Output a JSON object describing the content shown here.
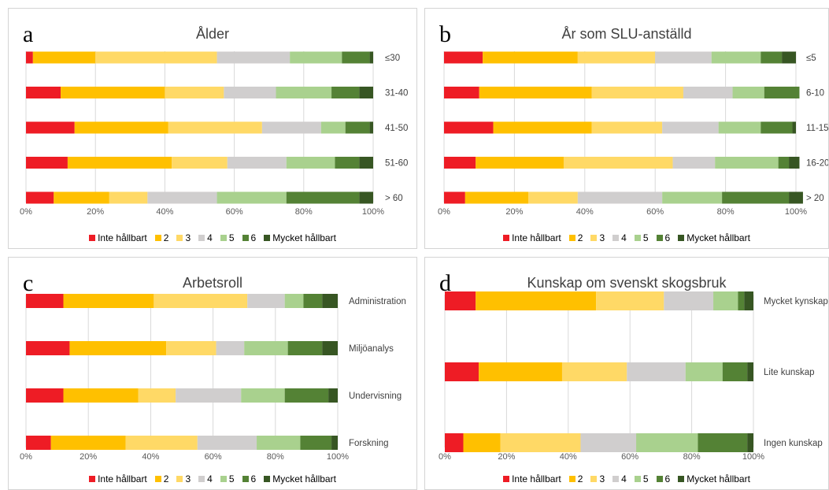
{
  "legend": [
    "Inte hållbart",
    "2",
    "3",
    "4",
    "5",
    "6",
    "Mycket hållbart"
  ],
  "colors": [
    "#ee1c25",
    "#ffc000",
    "#ffd966",
    "#d0cece",
    "#a9d18e",
    "#548235",
    "#375623"
  ],
  "chart_data": [
    {
      "type": "bar",
      "stacked": true,
      "orientation": "horizontal",
      "letter": "a",
      "title": "Ålder",
      "categories": [
        "≤30",
        "31-40",
        "41-50",
        "51-60",
        "> 60"
      ],
      "series": [
        {
          "name": "Inte hållbart",
          "values": [
            2,
            10,
            14,
            12,
            8
          ]
        },
        {
          "name": "2",
          "values": [
            18,
            30,
            27,
            30,
            16
          ]
        },
        {
          "name": "3",
          "values": [
            35,
            17,
            27,
            16,
            11
          ]
        },
        {
          "name": "4",
          "values": [
            21,
            15,
            17,
            17,
            20
          ]
        },
        {
          "name": "5",
          "values": [
            15,
            16,
            7,
            14,
            20
          ]
        },
        {
          "name": "6",
          "values": [
            8,
            8,
            7,
            7,
            21
          ]
        },
        {
          "name": "Mycket hållbart",
          "values": [
            1,
            4,
            1,
            4,
            4
          ]
        }
      ],
      "xlim": [
        0,
        100
      ],
      "xticks": [
        "0%",
        "20%",
        "40%",
        "60%",
        "80%",
        "100%"
      ]
    },
    {
      "type": "bar",
      "stacked": true,
      "orientation": "horizontal",
      "letter": "b",
      "title": "År som SLU-anställd",
      "categories": [
        "≤5",
        "6-10",
        "11-15",
        "16-20",
        "> 20"
      ],
      "series": [
        {
          "name": "Inte hållbart",
          "values": [
            11,
            10,
            14,
            9,
            6
          ]
        },
        {
          "name": "2",
          "values": [
            27,
            32,
            28,
            25,
            18
          ]
        },
        {
          "name": "3",
          "values": [
            22,
            26,
            20,
            31,
            14
          ]
        },
        {
          "name": "4",
          "values": [
            16,
            14,
            16,
            12,
            24
          ]
        },
        {
          "name": "5",
          "values": [
            14,
            9,
            12,
            18,
            17
          ]
        },
        {
          "name": "6",
          "values": [
            6,
            10,
            9,
            3,
            19
          ]
        },
        {
          "name": "Mycket hållbart",
          "values": [
            4,
            0,
            1,
            3,
            4
          ]
        }
      ],
      "xlim": [
        0,
        100
      ],
      "xticks": [
        "0%",
        "20%",
        "40%",
        "60%",
        "80%",
        "100%"
      ]
    },
    {
      "type": "bar",
      "stacked": true,
      "orientation": "horizontal",
      "letter": "c",
      "title": "Arbetsroll",
      "categories": [
        "Administration",
        "Miljöanalys",
        "Undervisning",
        "Forskning"
      ],
      "series": [
        {
          "name": "Inte hållbart",
          "values": [
            12,
            14,
            12,
            8
          ]
        },
        {
          "name": "2",
          "values": [
            29,
            31,
            24,
            24
          ]
        },
        {
          "name": "3",
          "values": [
            30,
            16,
            12,
            23
          ]
        },
        {
          "name": "4",
          "values": [
            12,
            9,
            21,
            19
          ]
        },
        {
          "name": "5",
          "values": [
            6,
            14,
            14,
            14
          ]
        },
        {
          "name": "6",
          "values": [
            6,
            11,
            14,
            10
          ]
        },
        {
          "name": "Mycket hållbart",
          "values": [
            5,
            5,
            3,
            2
          ]
        }
      ],
      "xlim": [
        0,
        100
      ],
      "xticks": [
        "0%",
        "20%",
        "40%",
        "60%",
        "80%",
        "100%"
      ]
    },
    {
      "type": "bar",
      "stacked": true,
      "orientation": "horizontal",
      "letter": "d",
      "title": "Kunskap om svenskt skogsbruk",
      "categories": [
        "Mycket kynskap",
        "Lite kunskap",
        "Ingen kunskap"
      ],
      "series": [
        {
          "name": "Inte hållbart",
          "values": [
            10,
            11,
            6
          ]
        },
        {
          "name": "2",
          "values": [
            39,
            27,
            12
          ]
        },
        {
          "name": "3",
          "values": [
            22,
            21,
            26
          ]
        },
        {
          "name": "4",
          "values": [
            16,
            19,
            18
          ]
        },
        {
          "name": "5",
          "values": [
            8,
            12,
            20
          ]
        },
        {
          "name": "6",
          "values": [
            2,
            8,
            16
          ]
        },
        {
          "name": "Mycket hållbart",
          "values": [
            3,
            2,
            2
          ]
        }
      ],
      "xlim": [
        0,
        100
      ],
      "xticks": [
        "0%",
        "20%",
        "40%",
        "60%",
        "80%",
        "100%"
      ]
    }
  ]
}
